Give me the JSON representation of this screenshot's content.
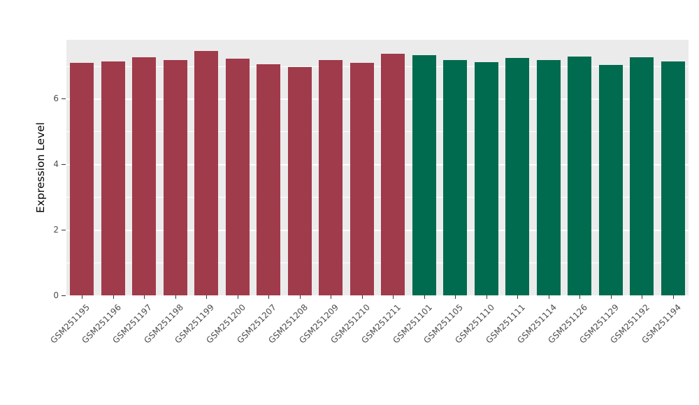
{
  "chart_data": {
    "type": "bar",
    "title": "",
    "xlabel": "",
    "ylabel": "Expression Level",
    "ylim": [
      0,
      7.8
    ],
    "yticks": [
      0,
      2,
      4,
      6
    ],
    "yticks_minor": [
      1,
      3,
      5,
      7
    ],
    "legend": "none",
    "grid": "on",
    "panel_background": "#EBEBEB",
    "categories": [
      "GSM251195",
      "GSM251196",
      "GSM251197",
      "GSM251198",
      "GSM251199",
      "GSM251200",
      "GSM251207",
      "GSM251208",
      "GSM251209",
      "GSM251210",
      "GSM251211",
      "GSM251101",
      "GSM251105",
      "GSM251110",
      "GSM251111",
      "GSM251114",
      "GSM251126",
      "GSM251129",
      "GSM251192",
      "GSM251194"
    ],
    "values": [
      7.1,
      7.14,
      7.27,
      7.19,
      7.46,
      7.23,
      7.06,
      6.97,
      7.19,
      7.1,
      7.38,
      7.33,
      7.19,
      7.12,
      7.25,
      7.19,
      7.29,
      7.04,
      7.27,
      7.14
    ],
    "groups": [
      "red",
      "red",
      "red",
      "red",
      "red",
      "red",
      "red",
      "red",
      "red",
      "red",
      "red",
      "green",
      "green",
      "green",
      "green",
      "green",
      "green",
      "green",
      "green",
      "green"
    ],
    "colors": {
      "red": "#A03B4B",
      "green": "#006B4E"
    }
  }
}
